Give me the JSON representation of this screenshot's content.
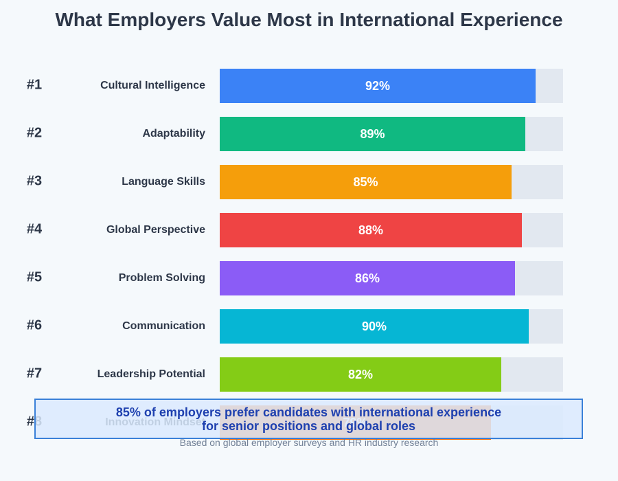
{
  "chart_data": {
    "type": "bar",
    "orientation": "horizontal",
    "title": "What Employers Value Most in International Experience",
    "xlim": [
      0,
      100
    ],
    "value_suffix": "%",
    "bars": [
      {
        "rank": "#1",
        "category": "Cultural Intelligence",
        "value": 92,
        "label": "92%",
        "color": "#3b82f6"
      },
      {
        "rank": "#2",
        "category": "Adaptability",
        "value": 89,
        "label": "89%",
        "color": "#10b981"
      },
      {
        "rank": "#3",
        "category": "Language Skills",
        "value": 85,
        "label": "85%",
        "color": "#f59e0b"
      },
      {
        "rank": "#4",
        "category": "Global Perspective",
        "value": 88,
        "label": "88%",
        "color": "#ef4444"
      },
      {
        "rank": "#5",
        "category": "Problem Solving",
        "value": 86,
        "label": "86%",
        "color": "#8b5cf6"
      },
      {
        "rank": "#6",
        "category": "Communication",
        "value": 90,
        "label": "90%",
        "color": "#06b6d4"
      },
      {
        "rank": "#7",
        "category": "Leadership Potential",
        "value": 82,
        "label": "82%",
        "color": "#84cc16"
      },
      {
        "rank": "#8",
        "category": "Innovation Mindset",
        "value": 79,
        "label": "79%",
        "color": "#f97316"
      }
    ],
    "track_color": "#e2e8f0",
    "callout": {
      "line1": "85% of employers prefer candidates with international experience",
      "line2": "for senior positions and global roles"
    },
    "source": "Based on global employer surveys and HR industry research"
  }
}
